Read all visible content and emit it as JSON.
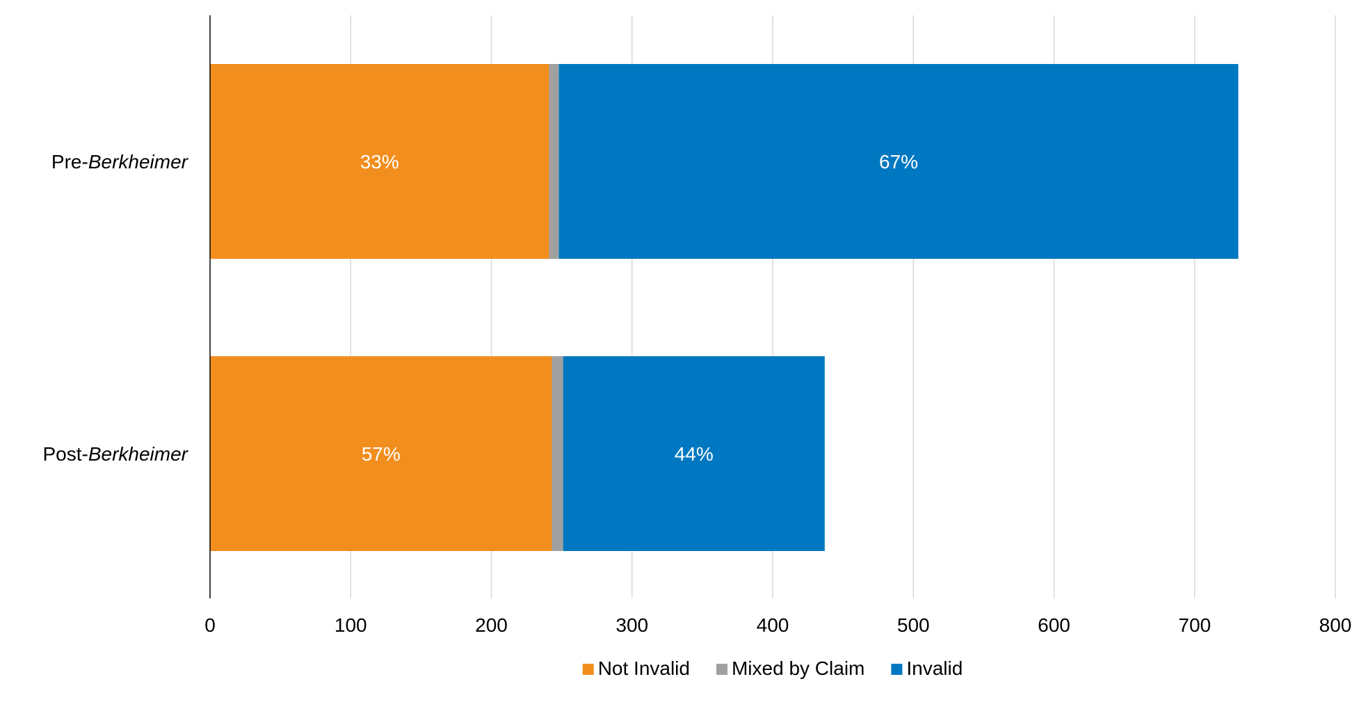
{
  "chart_data": {
    "type": "bar",
    "orientation": "horizontal",
    "stacked": true,
    "categories": [
      {
        "prefix": "Pre-",
        "emphasis": "Berkheimer"
      },
      {
        "prefix": "Post-",
        "emphasis": "Berkheimer"
      }
    ],
    "series": [
      {
        "name": "Not Invalid",
        "color": "#F28E1E",
        "values": [
          241,
          243
        ],
        "labels": [
          "33%",
          "57%"
        ]
      },
      {
        "name": "Mixed by Claim",
        "color": "#A0A0A0",
        "values": [
          7,
          8
        ],
        "labels": [
          "",
          ""
        ]
      },
      {
        "name": "Invalid",
        "color": "#0078C1",
        "values": [
          483,
          186
        ],
        "labels": [
          "67%",
          "44%"
        ]
      }
    ],
    "xlim": [
      0,
      800
    ],
    "xticks": [
      "0",
      "100",
      "200",
      "300",
      "400",
      "500",
      "600",
      "700",
      "800"
    ],
    "grid": true,
    "legend_position": "bottom",
    "title": "",
    "xlabel": "",
    "ylabel": ""
  }
}
